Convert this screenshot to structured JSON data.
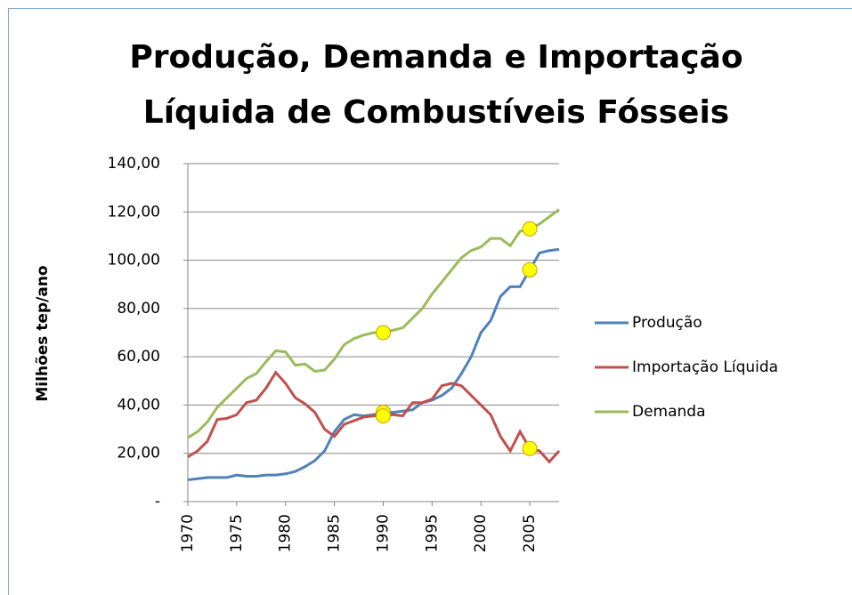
{
  "chart_data": {
    "type": "line",
    "title": [
      "Produção, Demanda e Importação",
      "Líquida de Combustíveis Fósseis"
    ],
    "y_label": "Milhões tep/ano",
    "x": [
      1970,
      1971,
      1972,
      1973,
      1974,
      1975,
      1976,
      1977,
      1978,
      1979,
      1980,
      1981,
      1982,
      1983,
      1984,
      1985,
      1986,
      1987,
      1988,
      1989,
      1990,
      1991,
      1992,
      1993,
      1994,
      1995,
      1996,
      1997,
      1998,
      1999,
      2000,
      2001,
      2002,
      2003,
      2004,
      2005,
      2006,
      2007,
      2008
    ],
    "series": [
      {
        "name": "Produção",
        "color": "#4f81bd",
        "values": [
          9,
          9.5,
          10,
          10,
          10,
          11,
          10.5,
          10.5,
          11,
          11,
          11.5,
          12.5,
          14.5,
          17,
          21,
          29,
          34,
          36,
          35.5,
          36,
          37,
          37,
          37.5,
          38,
          41,
          42,
          44,
          47,
          53,
          60,
          70,
          75,
          85,
          89,
          89,
          96,
          103,
          104,
          104.5
        ]
      },
      {
        "name": "Importação Líquida",
        "color": "#c0504d",
        "values": [
          18.5,
          21,
          25,
          34,
          34.5,
          36,
          41,
          42,
          47,
          53.5,
          49,
          43,
          40.5,
          37,
          30,
          27,
          32,
          33.5,
          35,
          35.5,
          35.5,
          36,
          35.5,
          41,
          41,
          42.5,
          48,
          49,
          48,
          44,
          40,
          36,
          27,
          21,
          29,
          22,
          21,
          16.5,
          21
        ]
      },
      {
        "name": "Demanda",
        "color": "#9bbb59",
        "values": [
          26.5,
          29,
          33,
          39,
          43,
          47,
          51,
          53,
          58,
          62.5,
          62,
          56.5,
          57,
          54,
          54.5,
          59,
          65,
          67.5,
          69,
          70,
          70,
          71,
          72,
          76,
          80,
          86,
          91,
          96,
          101,
          104,
          105.5,
          109,
          109,
          106,
          112,
          113,
          115,
          118,
          121
        ]
      }
    ],
    "highlight_x": [
      1990,
      2005
    ],
    "highlight_color": "#ffff00",
    "xlim": [
      1970,
      2008
    ],
    "xticks": [
      1970,
      1975,
      1980,
      1985,
      1990,
      1995,
      2000,
      2005
    ],
    "ylim": [
      0,
      140
    ],
    "yticks": [
      {
        "value": 0,
        "label": "-"
      },
      {
        "value": 20,
        "label": "20,00"
      },
      {
        "value": 40,
        "label": "40,00"
      },
      {
        "value": 60,
        "label": "60,00"
      },
      {
        "value": 80,
        "label": "80,00"
      },
      {
        "value": 100,
        "label": "100,00"
      },
      {
        "value": 120,
        "label": "120,00"
      },
      {
        "value": 140,
        "label": "140,00"
      }
    ],
    "grid": true,
    "legend": "right"
  }
}
